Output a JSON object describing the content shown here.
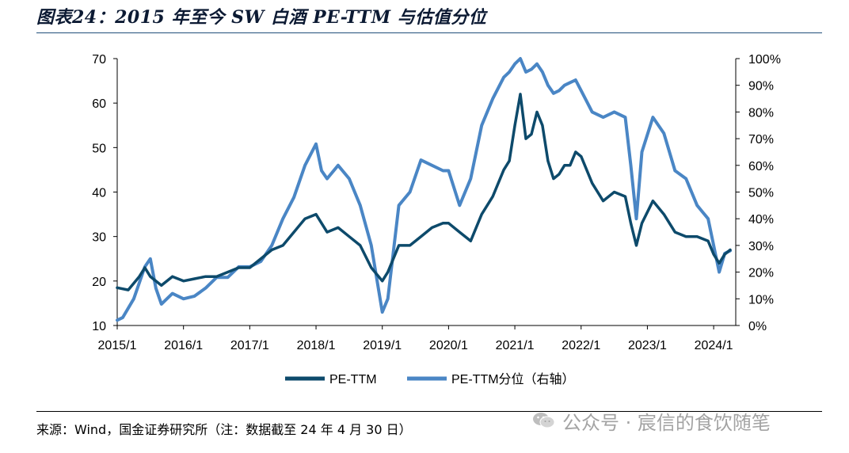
{
  "figure": {
    "title": "图表24：2015 年至今 SW 白酒 PE-TTM 与估值分位",
    "source": "来源：Wind，国金证券研究所（注：数据截至 24 年 4 月 30 日）",
    "watermark": "公众号 · 宸信的食饮随笔",
    "watermark_icon": "wechat-icon"
  },
  "chart_data": {
    "type": "line",
    "title": "2015 年至今 SW 白酒 PE-TTM 与估值分位",
    "x_range": [
      "2015/1",
      "2024/5"
    ],
    "x_ticks": [
      "2015/1",
      "2016/1",
      "2017/1",
      "2018/1",
      "2019/1",
      "2020/1",
      "2021/1",
      "2022/1",
      "2023/1",
      "2024/1"
    ],
    "y_left": {
      "min": 10,
      "max": 70,
      "ticks": [
        10,
        20,
        30,
        40,
        50,
        60,
        70
      ]
    },
    "y_right": {
      "min": 0,
      "max": 100,
      "unit": "%",
      "ticks": [
        "0%",
        "10%",
        "20%",
        "30%",
        "40%",
        "50%",
        "60%",
        "70%",
        "80%",
        "90%",
        "100%"
      ]
    },
    "grid": false,
    "legend": {
      "placement": "bottom",
      "entries": [
        "PE-TTM",
        "PE-TTM分位（右轴）"
      ]
    },
    "series": [
      {
        "name": "PE-TTM",
        "axis": "left",
        "color": "#0d4a6b",
        "points": [
          [
            "2015/1",
            18.5
          ],
          [
            "2015/3",
            18
          ],
          [
            "2015/5",
            21
          ],
          [
            "2015/6",
            23
          ],
          [
            "2015/7",
            21
          ],
          [
            "2015/9",
            19
          ],
          [
            "2015/11",
            21
          ],
          [
            "2016/1",
            20
          ],
          [
            "2016/3",
            20.5
          ],
          [
            "2016/5",
            21
          ],
          [
            "2016/7",
            21
          ],
          [
            "2016/9",
            22
          ],
          [
            "2016/11",
            23
          ],
          [
            "2017/1",
            23
          ],
          [
            "2017/3",
            25
          ],
          [
            "2017/5",
            27
          ],
          [
            "2017/7",
            28
          ],
          [
            "2017/9",
            31
          ],
          [
            "2017/11",
            34
          ],
          [
            "2018/1",
            35
          ],
          [
            "2018/3",
            31
          ],
          [
            "2018/5",
            32
          ],
          [
            "2018/7",
            30
          ],
          [
            "2018/9",
            28
          ],
          [
            "2018/11",
            23
          ],
          [
            "2019/1",
            20
          ],
          [
            "2019/2",
            22
          ],
          [
            "2019/4",
            28
          ],
          [
            "2019/6",
            28
          ],
          [
            "2019/8",
            30
          ],
          [
            "2019/10",
            32
          ],
          [
            "2019/12",
            33
          ],
          [
            "2020/1",
            33
          ],
          [
            "2020/3",
            31
          ],
          [
            "2020/5",
            29
          ],
          [
            "2020/7",
            35
          ],
          [
            "2020/9",
            39
          ],
          [
            "2020/11",
            45
          ],
          [
            "2020/12",
            47
          ],
          [
            "2021/1",
            55
          ],
          [
            "2021/2",
            62
          ],
          [
            "2021/3",
            52
          ],
          [
            "2021/4",
            53
          ],
          [
            "2021/5",
            58
          ],
          [
            "2021/6",
            55
          ],
          [
            "2021/7",
            47
          ],
          [
            "2021/8",
            43
          ],
          [
            "2021/9",
            44
          ],
          [
            "2021/10",
            46
          ],
          [
            "2021/11",
            46
          ],
          [
            "2021/12",
            49
          ],
          [
            "2022/1",
            48
          ],
          [
            "2022/3",
            42
          ],
          [
            "2022/5",
            38
          ],
          [
            "2022/7",
            40
          ],
          [
            "2022/9",
            39
          ],
          [
            "2022/10",
            33
          ],
          [
            "2022/11",
            28
          ],
          [
            "2022/12",
            33
          ],
          [
            "2023/2",
            38
          ],
          [
            "2023/4",
            35
          ],
          [
            "2023/6",
            31
          ],
          [
            "2023/8",
            30
          ],
          [
            "2023/10",
            30
          ],
          [
            "2023/12",
            29
          ],
          [
            "2024/1",
            26
          ],
          [
            "2024/2",
            24
          ],
          [
            "2024/3",
            26
          ],
          [
            "2024/4",
            27
          ]
        ]
      },
      {
        "name": "PE-TTM分位（右轴）",
        "axis": "right",
        "color": "#4a86c5",
        "points": [
          [
            "2015/1",
            2
          ],
          [
            "2015/2",
            3
          ],
          [
            "2015/4",
            10
          ],
          [
            "2015/6",
            22
          ],
          [
            "2015/7",
            25
          ],
          [
            "2015/8",
            14
          ],
          [
            "2015/9",
            8
          ],
          [
            "2015/11",
            12
          ],
          [
            "2016/1",
            10
          ],
          [
            "2016/3",
            11
          ],
          [
            "2016/5",
            14
          ],
          [
            "2016/7",
            18
          ],
          [
            "2016/9",
            18
          ],
          [
            "2016/11",
            22
          ],
          [
            "2017/1",
            22
          ],
          [
            "2017/3",
            24
          ],
          [
            "2017/5",
            30
          ],
          [
            "2017/7",
            40
          ],
          [
            "2017/9",
            48
          ],
          [
            "2017/11",
            60
          ],
          [
            "2018/1",
            68
          ],
          [
            "2018/2",
            58
          ],
          [
            "2018/3",
            55
          ],
          [
            "2018/5",
            60
          ],
          [
            "2018/7",
            55
          ],
          [
            "2018/9",
            45
          ],
          [
            "2018/11",
            30
          ],
          [
            "2019/1",
            5
          ],
          [
            "2019/2",
            10
          ],
          [
            "2019/4",
            45
          ],
          [
            "2019/6",
            50
          ],
          [
            "2019/8",
            62
          ],
          [
            "2019/10",
            60
          ],
          [
            "2019/12",
            58
          ],
          [
            "2020/1",
            58
          ],
          [
            "2020/3",
            45
          ],
          [
            "2020/5",
            55
          ],
          [
            "2020/7",
            75
          ],
          [
            "2020/9",
            85
          ],
          [
            "2020/11",
            93
          ],
          [
            "2020/12",
            95
          ],
          [
            "2021/1",
            98
          ],
          [
            "2021/2",
            100
          ],
          [
            "2021/3",
            95
          ],
          [
            "2021/4",
            96
          ],
          [
            "2021/5",
            98
          ],
          [
            "2021/6",
            95
          ],
          [
            "2021/7",
            90
          ],
          [
            "2021/8",
            87
          ],
          [
            "2021/9",
            88
          ],
          [
            "2021/10",
            90
          ],
          [
            "2021/11",
            91
          ],
          [
            "2021/12",
            92
          ],
          [
            "2022/1",
            88
          ],
          [
            "2022/3",
            80
          ],
          [
            "2022/5",
            78
          ],
          [
            "2022/7",
            80
          ],
          [
            "2022/9",
            78
          ],
          [
            "2022/10",
            60
          ],
          [
            "2022/11",
            40
          ],
          [
            "2022/12",
            65
          ],
          [
            "2023/2",
            78
          ],
          [
            "2023/4",
            72
          ],
          [
            "2023/6",
            58
          ],
          [
            "2023/8",
            55
          ],
          [
            "2023/10",
            45
          ],
          [
            "2023/12",
            40
          ],
          [
            "2024/1",
            30
          ],
          [
            "2024/2",
            20
          ],
          [
            "2024/3",
            27
          ],
          [
            "2024/4",
            28
          ]
        ]
      }
    ]
  }
}
